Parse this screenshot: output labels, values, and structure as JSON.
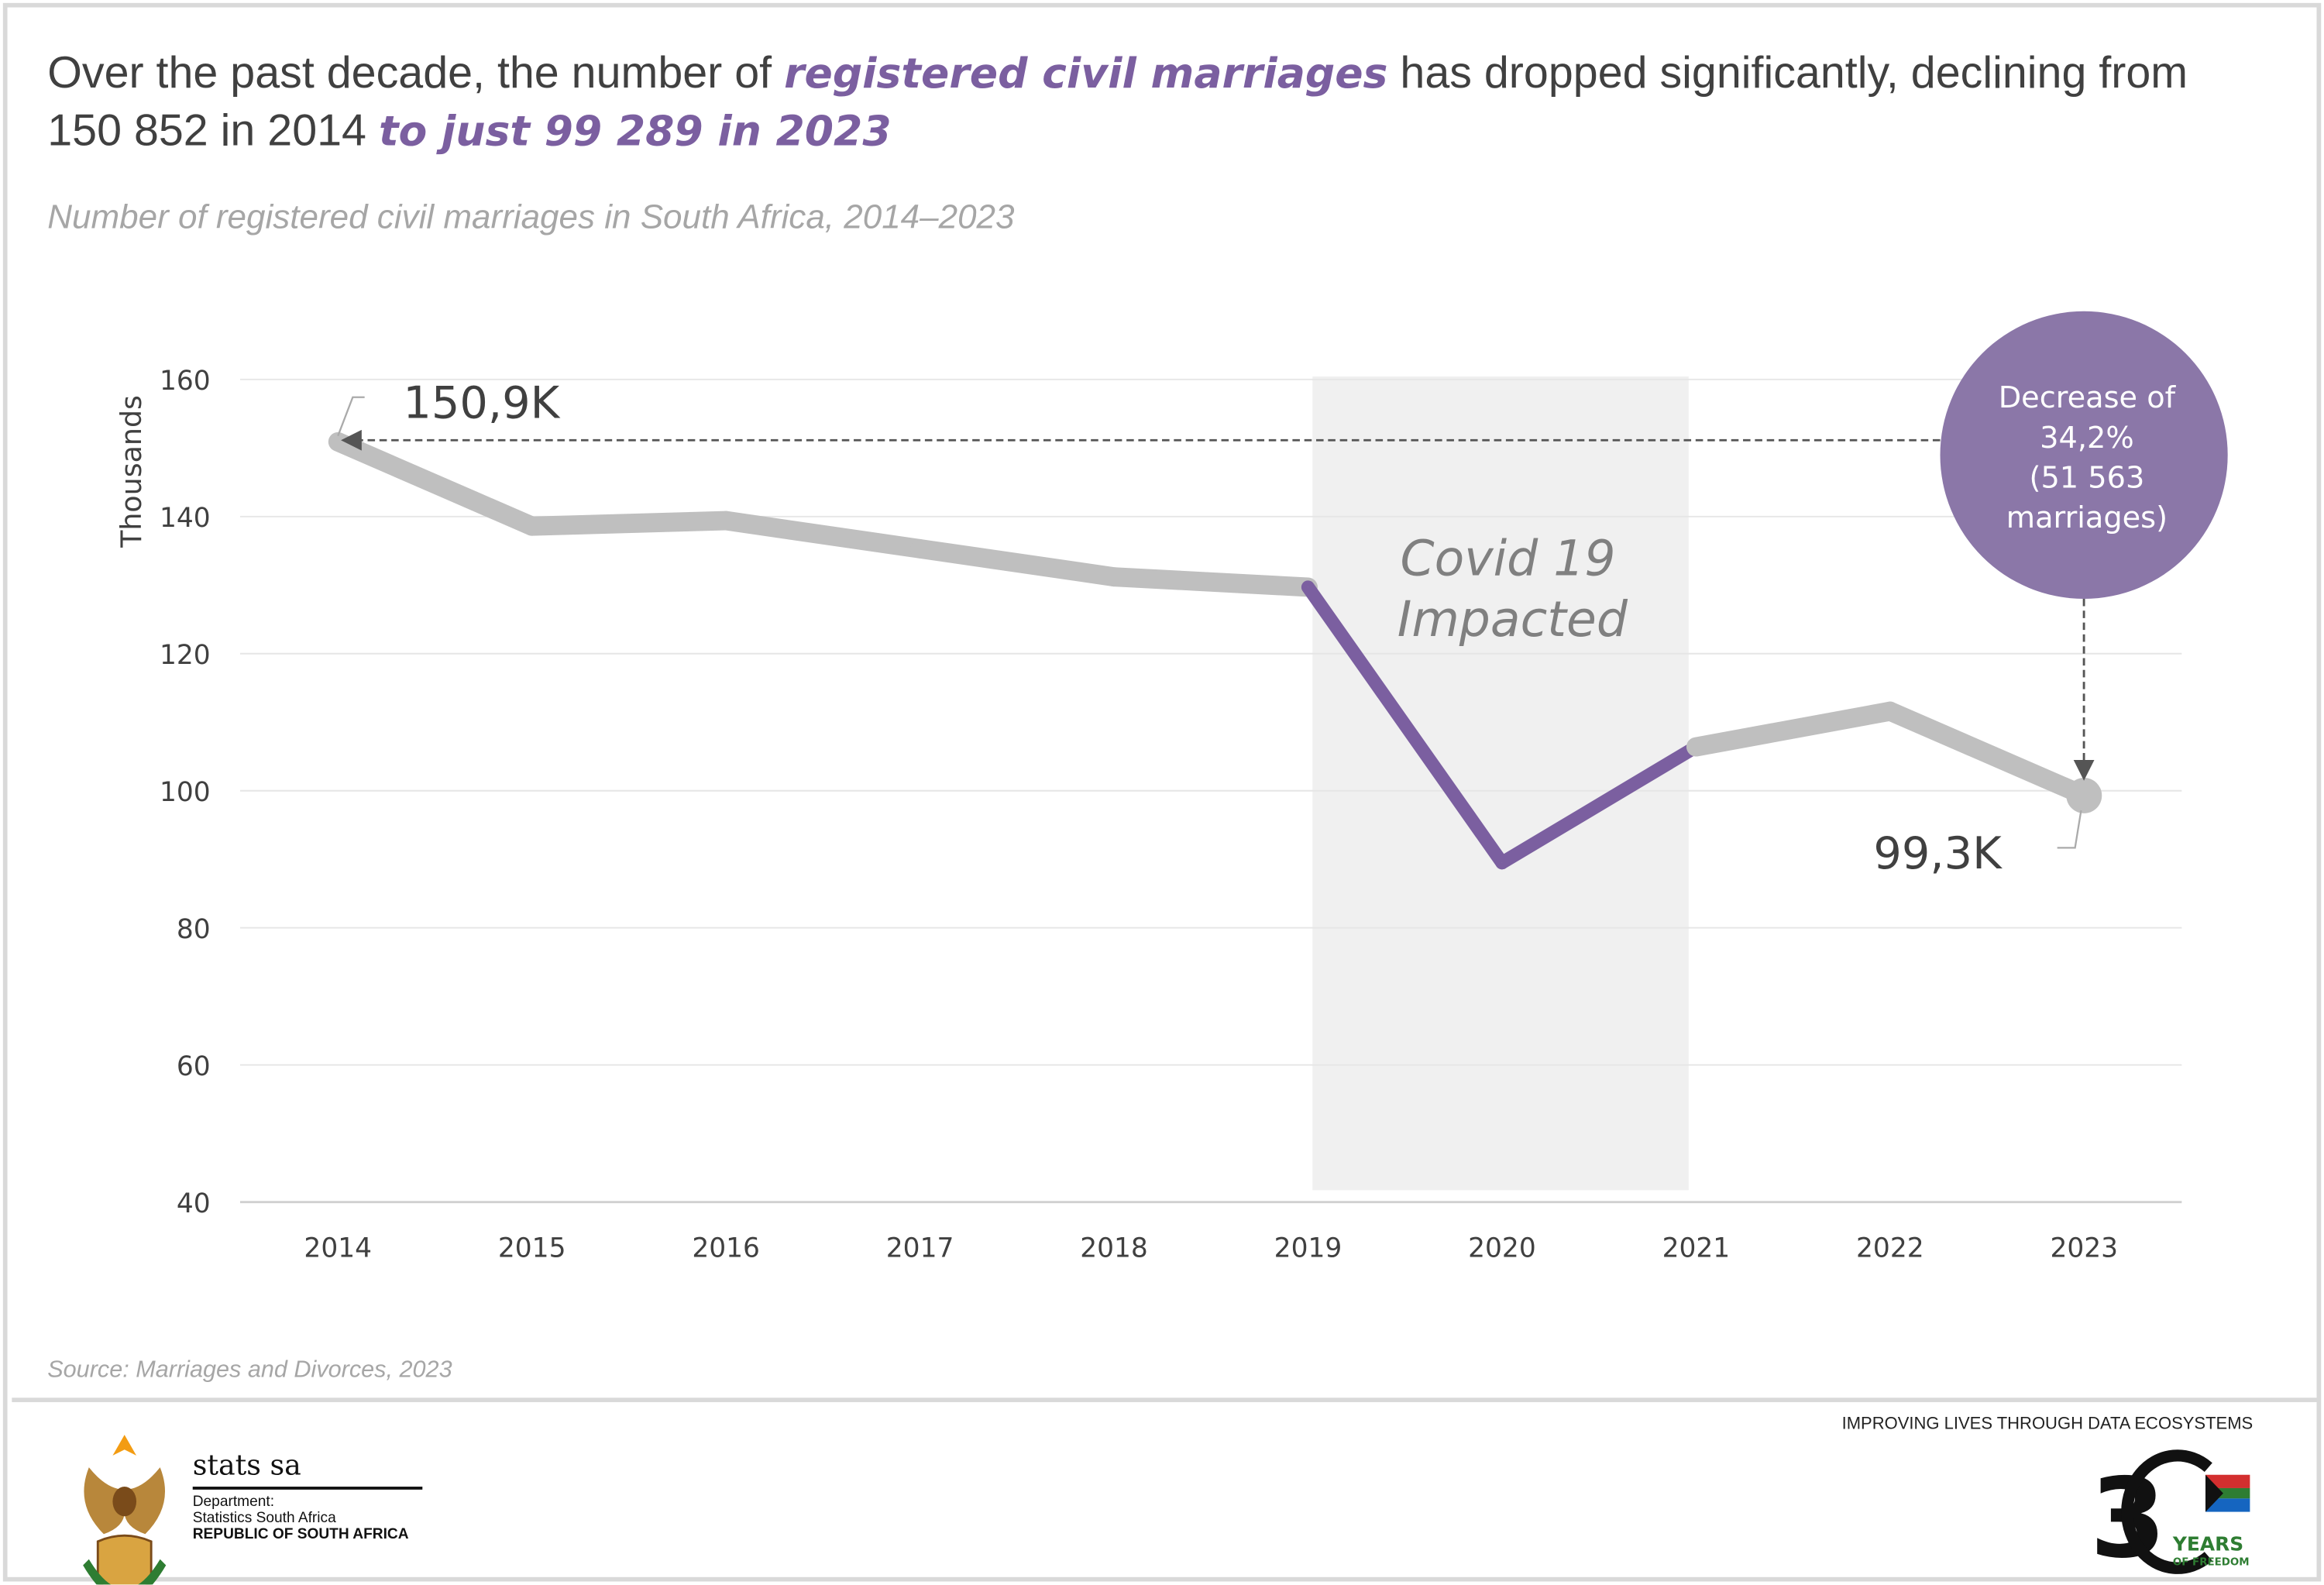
{
  "headline": {
    "part1": "Over the past decade, the number of ",
    "emphasis1": "registered civil marriages",
    "part2": " has dropped significantly, declining from 150 852 in 2014 ",
    "emphasis2": "to just 99 289 in 2023"
  },
  "colors": {
    "highlight": "#7b5fa0",
    "line_default": "#bfbfbf",
    "covid_band": "#f0f0f0",
    "callout_bubble": "#8b77a8"
  },
  "chart_data": {
    "type": "line",
    "title": "Number of registered civil marriages in South Africa, 2014–2023",
    "xlabel": "",
    "ylabel": "Thousands",
    "ylim": [
      40,
      160
    ],
    "yticks": [
      "40",
      "60",
      "80",
      "100",
      "120",
      "140",
      "160"
    ],
    "categories": [
      "2014",
      "2015",
      "2016",
      "2017",
      "2018",
      "2019",
      "2020",
      "2021",
      "2022",
      "2023"
    ],
    "values": [
      150.9,
      138.6,
      139.4,
      135.3,
      131.2,
      129.7,
      89.5,
      106.4,
      111.6,
      99.3
    ],
    "highlight_range": [
      "2019",
      "2021"
    ],
    "grid": true,
    "annotations": {
      "start_label": "150,9K",
      "end_label": "99,3K",
      "band_label_line1": "Covid 19",
      "band_label_line2": "Impacted",
      "bubble_lines": [
        "Decrease of",
        "34,2%",
        "(51 563",
        "marriages)"
      ]
    }
  },
  "source": "Source:  Marriages and Divorces, 2023",
  "footer": {
    "org_name": "stats sa",
    "dept_label": "Department:",
    "dept_name": "Statistics South Africa",
    "country": "REPUBLIC OF SOUTH AFRICA",
    "tagline": "IMPROVING LIVES THROUGH DATA ECOSYSTEMS",
    "anniversary_logo": "30 YEARS OF FREEDOM"
  }
}
